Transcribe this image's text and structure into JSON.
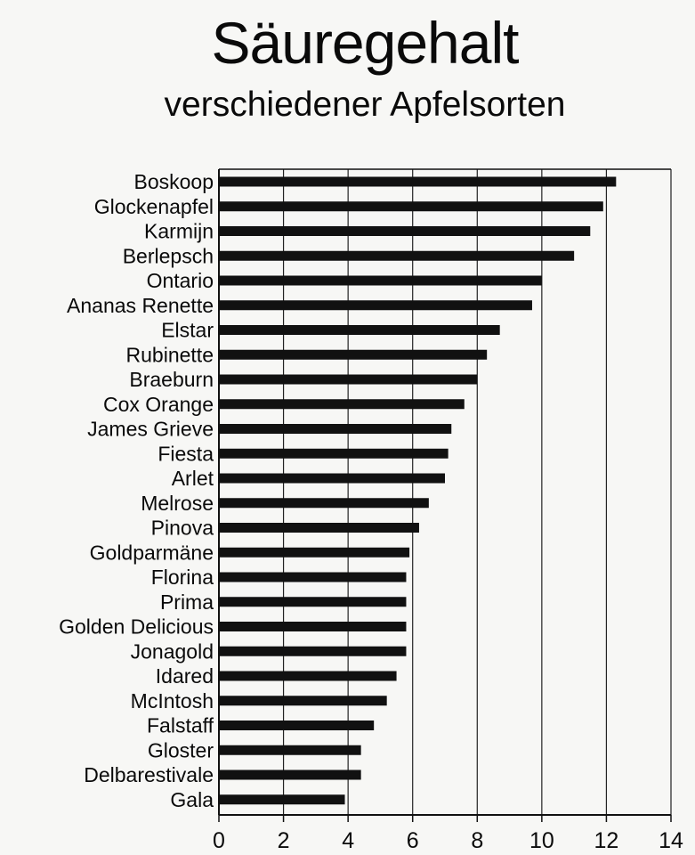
{
  "title": "Säuregehalt",
  "subtitle": "verschiedener Apfelsorten",
  "chart_data": {
    "type": "bar",
    "orientation": "horizontal",
    "title": "Säuregehalt",
    "subtitle": "verschiedener Apfelsorten",
    "xlabel": "",
    "ylabel": "",
    "xlim": [
      0,
      14
    ],
    "xticks": [
      0,
      2,
      4,
      6,
      8,
      10,
      12,
      14
    ],
    "grid": "vertical",
    "legend": "none",
    "bar_color": "#111111",
    "categories": [
      "Boskoop",
      "Glockenapfel",
      "Karmijn",
      "Berlepsch",
      "Ontario",
      "Ananas Renette",
      "Elstar",
      "Rubinette",
      "Braeburn",
      "Cox Orange",
      "James Grieve",
      "Fiesta",
      "Arlet",
      "Melrose",
      "Pinova",
      "Goldparmäne",
      "Florina",
      "Prima",
      "Golden Delicious",
      "Jonagold",
      "Idared",
      "McIntosh",
      "Falstaff",
      "Gloster",
      "Delbarestivale",
      "Gala"
    ],
    "values": [
      12.3,
      11.9,
      11.5,
      11.0,
      10.0,
      9.7,
      8.7,
      8.3,
      8.0,
      7.6,
      7.2,
      7.1,
      7.0,
      6.5,
      6.2,
      5.9,
      5.8,
      5.8,
      5.8,
      5.8,
      5.5,
      5.2,
      4.8,
      4.4,
      4.4,
      3.9
    ]
  }
}
